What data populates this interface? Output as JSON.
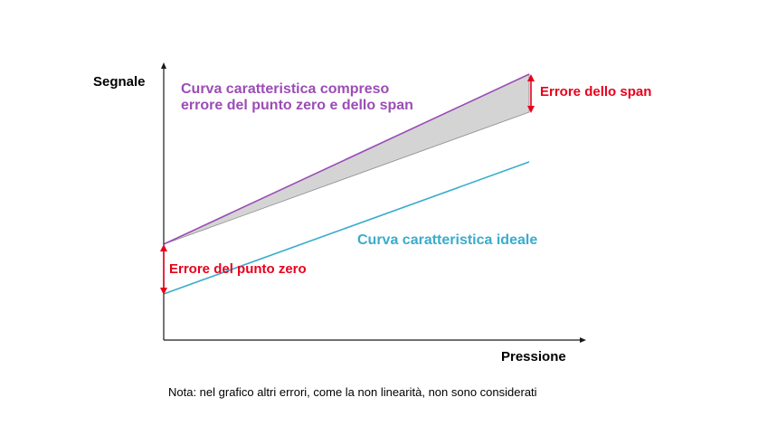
{
  "axes": {
    "y_label": "Segnale",
    "x_label": "Pressione"
  },
  "curves": {
    "with_errors": {
      "label_line1": "Curva caratteristica compreso",
      "label_line2": "errore del punto zero e dello span",
      "color": "#9b4db6"
    },
    "ideal": {
      "label": "Curva caratteristica ideale",
      "color": "#3aaccc"
    }
  },
  "errors": {
    "span_label": "Errore dello span",
    "zero_label": "Errore del punto zero",
    "color": "#e8001c"
  },
  "note": "Nota: nel grafico altri errori, come la non linearità, non sono considerati",
  "colors": {
    "axis": "#1a1a1a",
    "text": "#000000",
    "band_fill": "#d4d4d4",
    "band_edge": "#8a8a8a"
  }
}
